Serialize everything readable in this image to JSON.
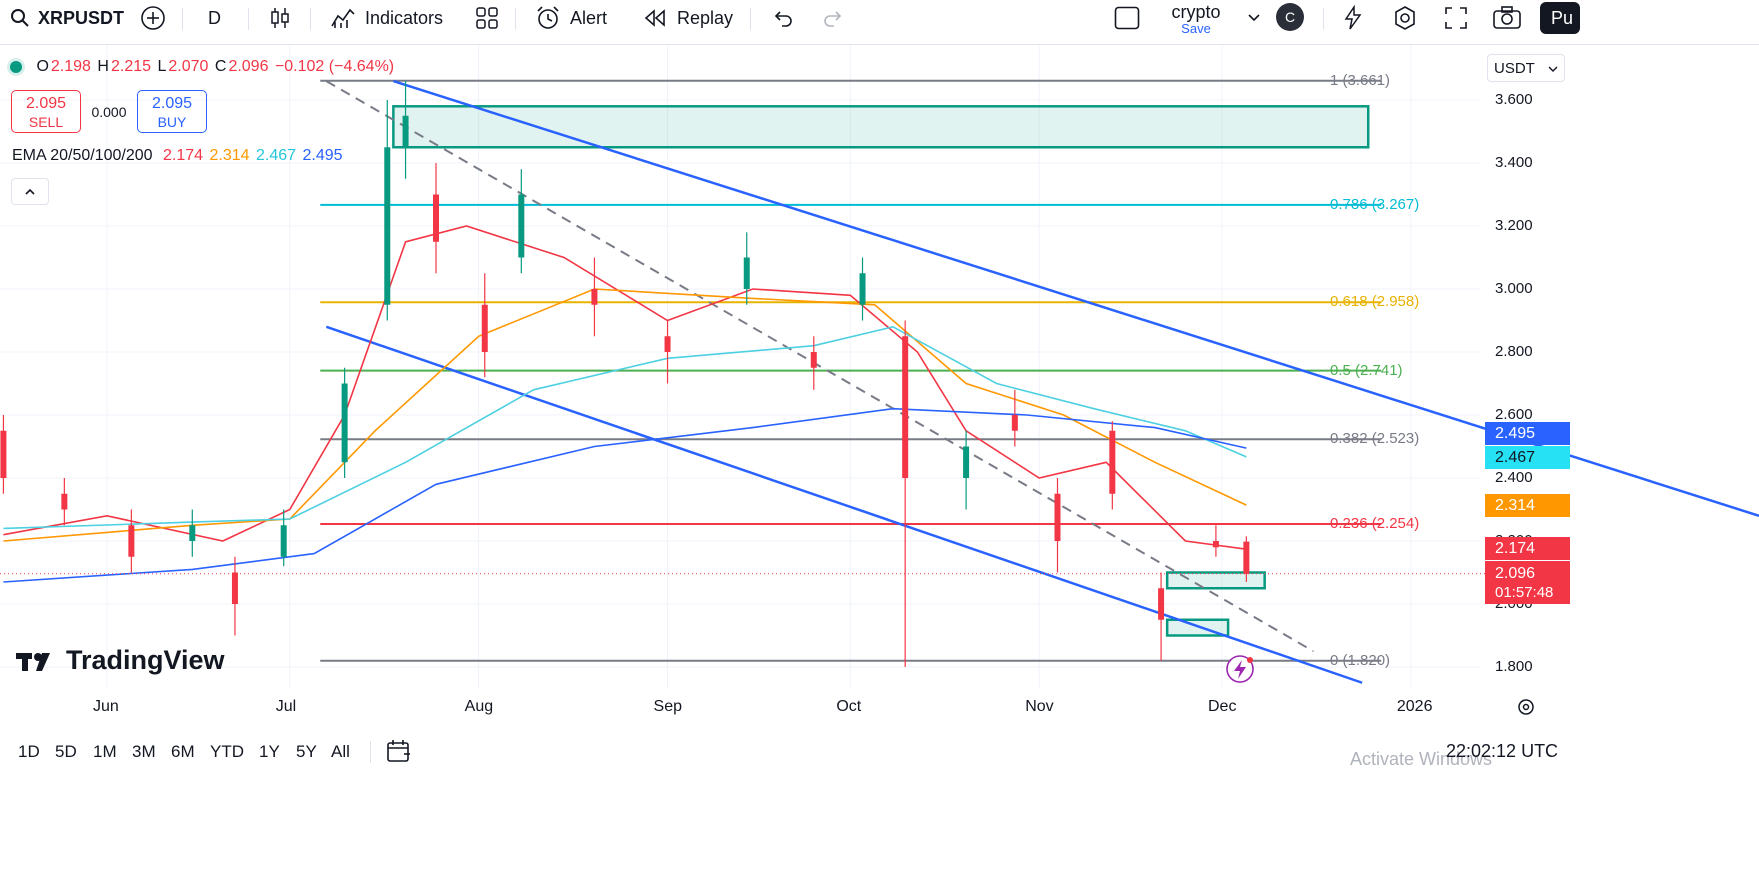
{
  "toolbar": {
    "symbol": "XRPUSDT",
    "interval": "D",
    "indicators_label": "Indicators",
    "alert_label": "Alert",
    "replay_label": "Replay",
    "layout_name": "crypto",
    "layout_save": "Save",
    "avatar_letter": "C",
    "publish_label": "Pu"
  },
  "legend": {
    "o_label": "O",
    "o": "2.198",
    "h_label": "H",
    "h": "2.215",
    "l_label": "L",
    "l": "2.070",
    "c_label": "C",
    "c": "2.096",
    "change": "−0.102 (−4.64%)",
    "sell_price": "2.095",
    "sell_label": "SELL",
    "spread": "0.000",
    "buy_price": "2.095",
    "buy_label": "BUY",
    "ema_title": "EMA 20/50/100/200",
    "ema20": "2.174",
    "ema50": "2.314",
    "ema100": "2.467",
    "ema200": "2.495"
  },
  "colors": {
    "up": "#089981",
    "down": "#f23645",
    "ema20": "#f23645",
    "ema50": "#ff9800",
    "ema100": "#4dd0e1",
    "ema200": "#2962ff",
    "channel": "#2962ff",
    "zone": "#089981"
  },
  "price_axis": {
    "currency": "USDT",
    "labels": [
      "3.600",
      "3.400",
      "3.200",
      "3.000",
      "2.800",
      "2.600",
      "2.400",
      "2.200",
      "2.000",
      "1.800"
    ]
  },
  "price_tags": {
    "ema200": "2.495",
    "ema100": "2.467",
    "ema50": "2.314",
    "ema20": "2.174",
    "last": "2.096",
    "countdown": "01:57:48"
  },
  "time_axis": {
    "labels": [
      "Jun",
      "Jul",
      "Aug",
      "Sep",
      "Oct",
      "Nov",
      "Dec",
      "2026"
    ]
  },
  "fib_levels": [
    {
      "label": "1 (3.661)",
      "color": "#787b86"
    },
    {
      "label": "0.786 (3.267)",
      "color": "#00bcd4"
    },
    {
      "label": "0.618 (2.958)",
      "color": "#e8b300"
    },
    {
      "label": "0.5 (2.741)",
      "color": "#4caf50"
    },
    {
      "label": "0.382 (2.523)",
      "color": "#787b86"
    },
    {
      "label": "0.236 (2.254)",
      "color": "#f23645"
    },
    {
      "label": "0 (1.820)",
      "color": "#787b86"
    }
  ],
  "brand": {
    "name": "TradingView"
  },
  "ranges": [
    "1D",
    "5D",
    "1M",
    "3M",
    "6M",
    "YTD",
    "1Y",
    "5Y",
    "All"
  ],
  "status": {
    "watermark": "Activate Windows",
    "clock": "22:02:12 UTC"
  },
  "chart_data": {
    "type": "candlestick",
    "symbol": "XRPUSDT",
    "interval": "1D",
    "ylim": [
      1.75,
      3.72
    ],
    "x_range": [
      "2025-05-15",
      "2026-01-20"
    ],
    "candles": [
      {
        "date": "2025-05-15",
        "o": 2.55,
        "h": 2.6,
        "l": 2.35,
        "c": 2.4
      },
      {
        "date": "2025-05-25",
        "o": 2.35,
        "h": 2.4,
        "l": 2.25,
        "c": 2.3
      },
      {
        "date": "2025-06-05",
        "o": 2.25,
        "h": 2.3,
        "l": 2.1,
        "c": 2.15
      },
      {
        "date": "2025-06-15",
        "o": 2.2,
        "h": 2.3,
        "l": 2.15,
        "c": 2.25
      },
      {
        "date": "2025-06-22",
        "o": 2.1,
        "h": 2.15,
        "l": 1.9,
        "c": 2.0
      },
      {
        "date": "2025-06-30",
        "o": 2.15,
        "h": 2.3,
        "l": 2.12,
        "c": 2.25
      },
      {
        "date": "2025-07-10",
        "o": 2.45,
        "h": 2.75,
        "l": 2.4,
        "c": 2.7
      },
      {
        "date": "2025-07-17",
        "o": 2.95,
        "h": 3.6,
        "l": 2.9,
        "c": 3.45
      },
      {
        "date": "2025-07-20",
        "o": 3.45,
        "h": 3.661,
        "l": 3.35,
        "c": 3.55
      },
      {
        "date": "2025-07-25",
        "o": 3.3,
        "h": 3.4,
        "l": 3.05,
        "c": 3.15
      },
      {
        "date": "2025-08-02",
        "o": 2.95,
        "h": 3.05,
        "l": 2.72,
        "c": 2.8
      },
      {
        "date": "2025-08-08",
        "o": 3.1,
        "h": 3.38,
        "l": 3.05,
        "c": 3.3
      },
      {
        "date": "2025-08-20",
        "o": 3.0,
        "h": 3.1,
        "l": 2.85,
        "c": 2.95
      },
      {
        "date": "2025-09-01",
        "o": 2.85,
        "h": 2.9,
        "l": 2.7,
        "c": 2.8
      },
      {
        "date": "2025-09-14",
        "o": 3.0,
        "h": 3.18,
        "l": 2.95,
        "c": 3.1
      },
      {
        "date": "2025-09-25",
        "o": 2.8,
        "h": 2.85,
        "l": 2.68,
        "c": 2.75
      },
      {
        "date": "2025-10-03",
        "o": 2.95,
        "h": 3.1,
        "l": 2.9,
        "c": 3.05
      },
      {
        "date": "2025-10-10",
        "o": 2.85,
        "h": 2.9,
        "l": 1.8,
        "c": 2.4
      },
      {
        "date": "2025-10-20",
        "o": 2.4,
        "h": 2.55,
        "l": 2.3,
        "c": 2.5
      },
      {
        "date": "2025-10-28",
        "o": 2.6,
        "h": 2.68,
        "l": 2.5,
        "c": 2.55
      },
      {
        "date": "2025-11-04",
        "o": 2.35,
        "h": 2.4,
        "l": 2.1,
        "c": 2.2
      },
      {
        "date": "2025-11-13",
        "o": 2.55,
        "h": 2.58,
        "l": 2.3,
        "c": 2.35
      },
      {
        "date": "2025-11-21",
        "o": 2.05,
        "h": 2.1,
        "l": 1.82,
        "c": 1.95
      },
      {
        "date": "2025-11-30",
        "o": 2.2,
        "h": 2.25,
        "l": 2.15,
        "c": 2.18
      },
      {
        "date": "2025-12-05",
        "o": 2.198,
        "h": 2.215,
        "l": 2.07,
        "c": 2.096
      }
    ],
    "ema": {
      "names": [
        "EMA 20",
        "EMA 50",
        "EMA 100",
        "EMA 200"
      ],
      "last": [
        2.174,
        2.314,
        2.467,
        2.495
      ]
    },
    "fibonacci": [
      {
        "level": 1,
        "price": 3.661
      },
      {
        "level": 0.786,
        "price": 3.267
      },
      {
        "level": 0.618,
        "price": 2.958
      },
      {
        "level": 0.5,
        "price": 2.741
      },
      {
        "level": 0.382,
        "price": 2.523
      },
      {
        "level": 0.236,
        "price": 2.254
      },
      {
        "level": 0,
        "price": 1.82
      }
    ],
    "zones": [
      {
        "from": "2025-07-18",
        "to": "2025-12-25",
        "low": 3.45,
        "high": 3.58
      },
      {
        "from": "2025-11-22",
        "to": "2025-12-08",
        "low": 2.05,
        "high": 2.1
      },
      {
        "from": "2025-11-22",
        "to": "2025-12-02",
        "low": 1.9,
        "high": 1.95
      }
    ]
  }
}
